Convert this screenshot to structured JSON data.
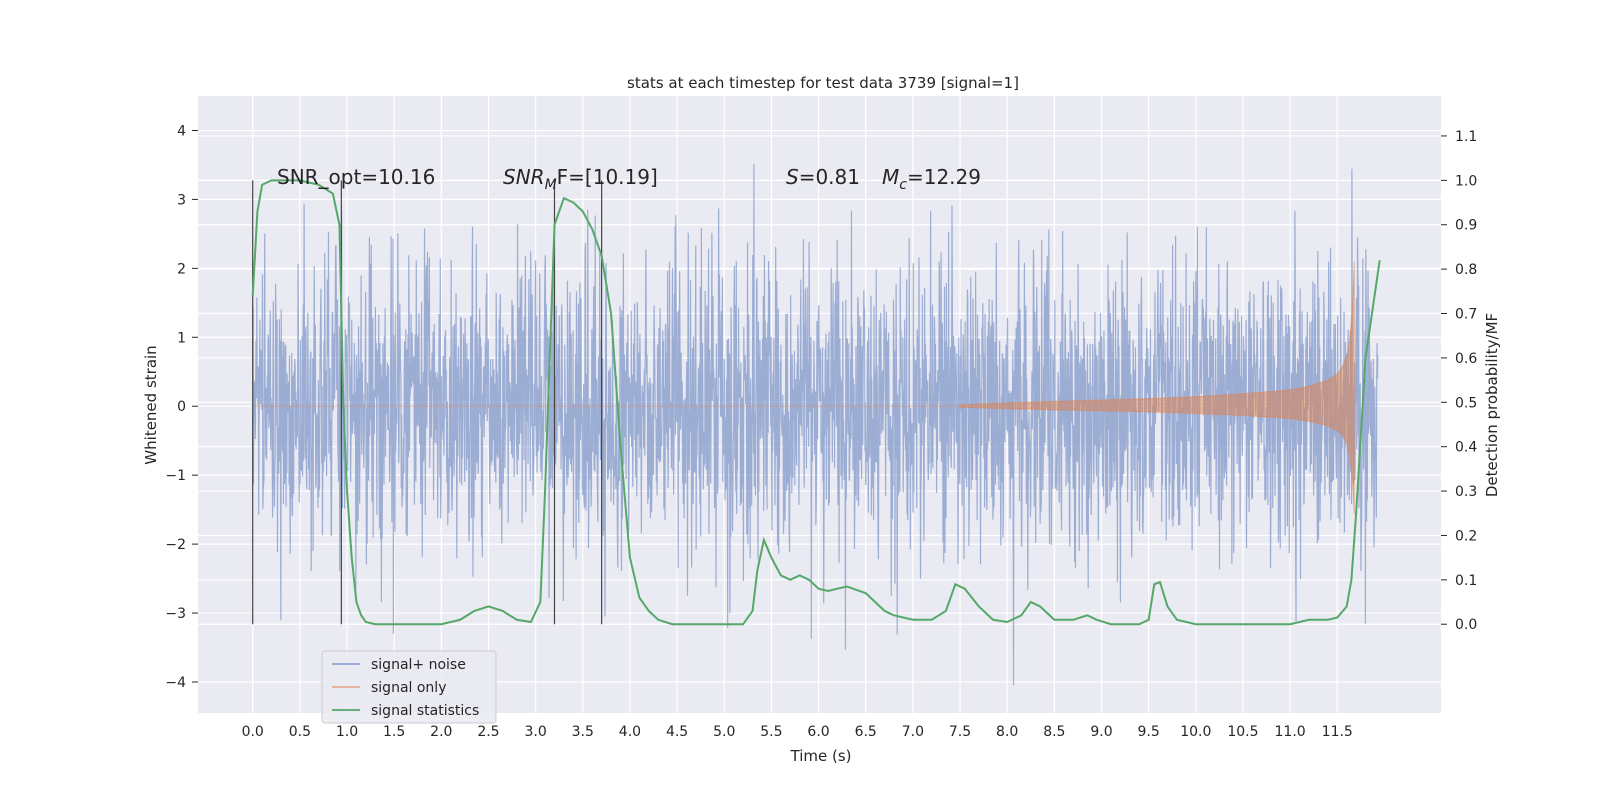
{
  "chart_data": {
    "type": "line",
    "title": "stats at each timestep for test data 3739 [signal=1]",
    "xlabel": "Time (s)",
    "ylabel_left": "Whitened strain",
    "ylabel_right": "Detection probability/MF",
    "xlim": [
      -0.58,
      12.6
    ],
    "ylim_left": [
      -4.45,
      4.5
    ],
    "ylim_right": [
      -0.2,
      1.19
    ],
    "grid": true,
    "x_ticks": [
      "0.0",
      "0.5",
      "1.0",
      "1.5",
      "2.0",
      "2.5",
      "3.0",
      "3.5",
      "4.0",
      "4.5",
      "5.0",
      "5.5",
      "6.0",
      "6.5",
      "7.0",
      "7.5",
      "8.0",
      "8.5",
      "9.0",
      "9.5",
      "10.0",
      "10.5",
      "11.0",
      "11.5"
    ],
    "y_ticks_left": [
      "4",
      "3",
      "2",
      "1",
      "0",
      "−1",
      "−2",
      "−3",
      "−4"
    ],
    "y_ticks_right": [
      "1.1",
      "1.0",
      "0.9",
      "0.8",
      "0.7",
      "0.6",
      "0.5",
      "0.4",
      "0.3",
      "0.2",
      "0.1",
      "0.0"
    ],
    "annotations": {
      "snr_opt": "SNR_opt=10.16",
      "snr_mf_main": "SNR",
      "snr_mf_sub": "M",
      "snr_mf_rest": "F=[10.19]",
      "s_main": "S",
      "s_rest": "=0.81",
      "mc_main": "M",
      "mc_sub": "c",
      "mc_rest": "=12.29"
    },
    "legend": {
      "placement": "lower-left",
      "entries": [
        "signal+ noise",
        "signal only",
        "signal statistics"
      ]
    },
    "colors": {
      "noise": "#8ea2cf",
      "signal": "#dd8452",
      "statistics": "#55a868",
      "background": "#eaeaf2"
    },
    "series": [
      {
        "name": "signal statistics",
        "axis": "right",
        "x": [
          0.0,
          0.05,
          0.1,
          0.2,
          0.3,
          0.5,
          0.7,
          0.85,
          0.92,
          0.96,
          1.0,
          1.05,
          1.1,
          1.15,
          1.2,
          1.3,
          1.5,
          2.0,
          2.2,
          2.35,
          2.5,
          2.65,
          2.8,
          2.95,
          3.05,
          3.1,
          3.15,
          3.2,
          3.3,
          3.4,
          3.5,
          3.6,
          3.7,
          3.8,
          3.9,
          4.0,
          4.1,
          4.2,
          4.3,
          4.45,
          4.8,
          5.2,
          5.3,
          5.35,
          5.42,
          5.5,
          5.6,
          5.7,
          5.8,
          5.9,
          6.0,
          6.1,
          6.2,
          6.3,
          6.5,
          6.6,
          6.7,
          6.8,
          7.0,
          7.2,
          7.35,
          7.45,
          7.55,
          7.7,
          7.85,
          8.0,
          8.15,
          8.25,
          8.35,
          8.5,
          8.7,
          8.85,
          8.95,
          9.1,
          9.4,
          9.5,
          9.56,
          9.62,
          9.7,
          9.8,
          10.0,
          10.5,
          11.0,
          11.2,
          11.4,
          11.5,
          11.6,
          11.65,
          11.7,
          11.8,
          11.95
        ],
        "y": [
          0.74,
          0.93,
          0.99,
          1.0,
          1.0,
          1.0,
          0.99,
          0.97,
          0.9,
          0.5,
          0.3,
          0.15,
          0.05,
          0.02,
          0.005,
          0.0,
          0.0,
          0.0,
          0.01,
          0.03,
          0.04,
          0.03,
          0.01,
          0.005,
          0.05,
          0.3,
          0.6,
          0.9,
          0.96,
          0.95,
          0.93,
          0.89,
          0.83,
          0.7,
          0.4,
          0.15,
          0.06,
          0.03,
          0.01,
          0.0,
          0.0,
          0.0,
          0.03,
          0.12,
          0.19,
          0.15,
          0.11,
          0.1,
          0.11,
          0.1,
          0.08,
          0.075,
          0.08,
          0.085,
          0.07,
          0.05,
          0.03,
          0.02,
          0.01,
          0.01,
          0.03,
          0.09,
          0.08,
          0.04,
          0.01,
          0.005,
          0.02,
          0.05,
          0.04,
          0.01,
          0.01,
          0.02,
          0.01,
          0.0,
          0.0,
          0.01,
          0.09,
          0.095,
          0.04,
          0.01,
          0.0,
          0.0,
          0.0,
          0.01,
          0.01,
          0.015,
          0.04,
          0.1,
          0.25,
          0.6,
          0.82
        ]
      },
      {
        "name": "signal only",
        "axis": "left",
        "envelope_x": [
          7.5,
          8.0,
          8.5,
          9.0,
          9.5,
          10.0,
          10.5,
          11.0,
          11.2,
          11.4,
          11.5,
          11.55,
          11.6,
          11.63,
          11.66,
          11.68
        ],
        "envelope_amp": [
          0.02,
          0.05,
          0.07,
          0.09,
          0.11,
          0.14,
          0.18,
          0.24,
          0.29,
          0.38,
          0.47,
          0.56,
          0.72,
          0.95,
          1.4,
          2.1
        ]
      }
    ]
  }
}
